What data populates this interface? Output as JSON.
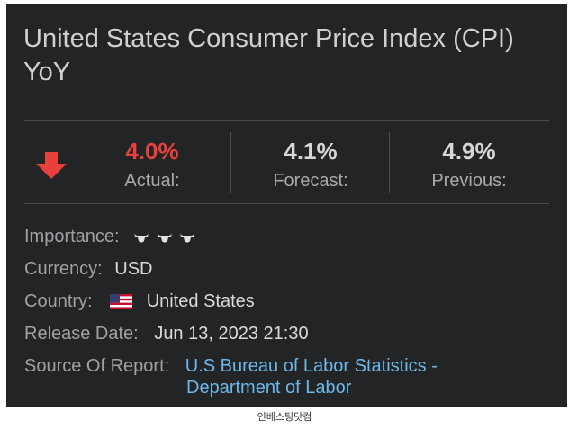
{
  "title": "United States Consumer Price Index (CPI) YoY",
  "stats": {
    "trend_icon": "arrow-down-icon",
    "actual": {
      "value": "4.0%",
      "label": "Actual:",
      "color": "#e8403b"
    },
    "forecast": {
      "value": "4.1%",
      "label": "Forecast:"
    },
    "previous": {
      "value": "4.9%",
      "label": "Previous:"
    }
  },
  "details": {
    "importance_label": "Importance:",
    "importance_level": 3,
    "importance_icon": "bull-icon",
    "currency_label": "Currency:",
    "currency_value": "USD",
    "country_label": "Country:",
    "country_flag": "us-flag-icon",
    "country_value": "United States",
    "release_label": "Release Date:",
    "release_value": "Jun 13, 2023 21:30",
    "source_label": "Source Of Report:",
    "source_line1": "U.S Bureau of Labor Statistics -",
    "source_line2": "Department of Labor"
  },
  "caption": "인베스팅닷컴",
  "colors": {
    "card_bg": "#222426",
    "link": "#6cb8ea",
    "accent_red": "#e8403b"
  }
}
